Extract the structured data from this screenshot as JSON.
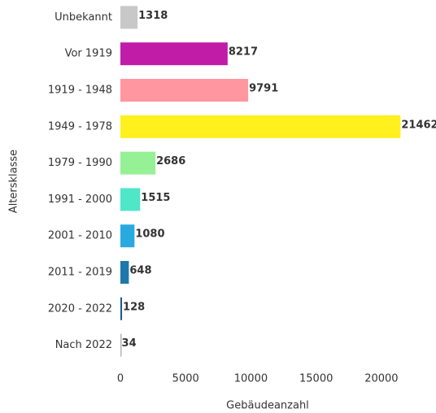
{
  "chart_data": {
    "type": "bar",
    "orientation": "horizontal",
    "categories": [
      "Unbekannt",
      "Vor 1919",
      "1919 - 1948",
      "1949 - 1978",
      "1979 - 1990",
      "1991 - 2000",
      "2001 - 2010",
      "2011 - 2019",
      "2020 - 2022",
      "Nach 2022"
    ],
    "values": [
      1318,
      8217,
      9791,
      21462,
      2686,
      1515,
      1080,
      648,
      128,
      34
    ],
    "colors": [
      "#c8c8c8",
      "#c01ca8",
      "#ff96a0",
      "#fff01e",
      "#96f096",
      "#50e6c8",
      "#28aae1",
      "#1e78aa",
      "#1e5a8c",
      "#b4b4b4"
    ],
    "xlabel": "Gebäudeanzahl",
    "ylabel": "Altersklasse",
    "xlim": [
      0,
      22000
    ],
    "xticks": [
      0,
      5000,
      10000,
      15000,
      20000
    ],
    "grid": false
  }
}
